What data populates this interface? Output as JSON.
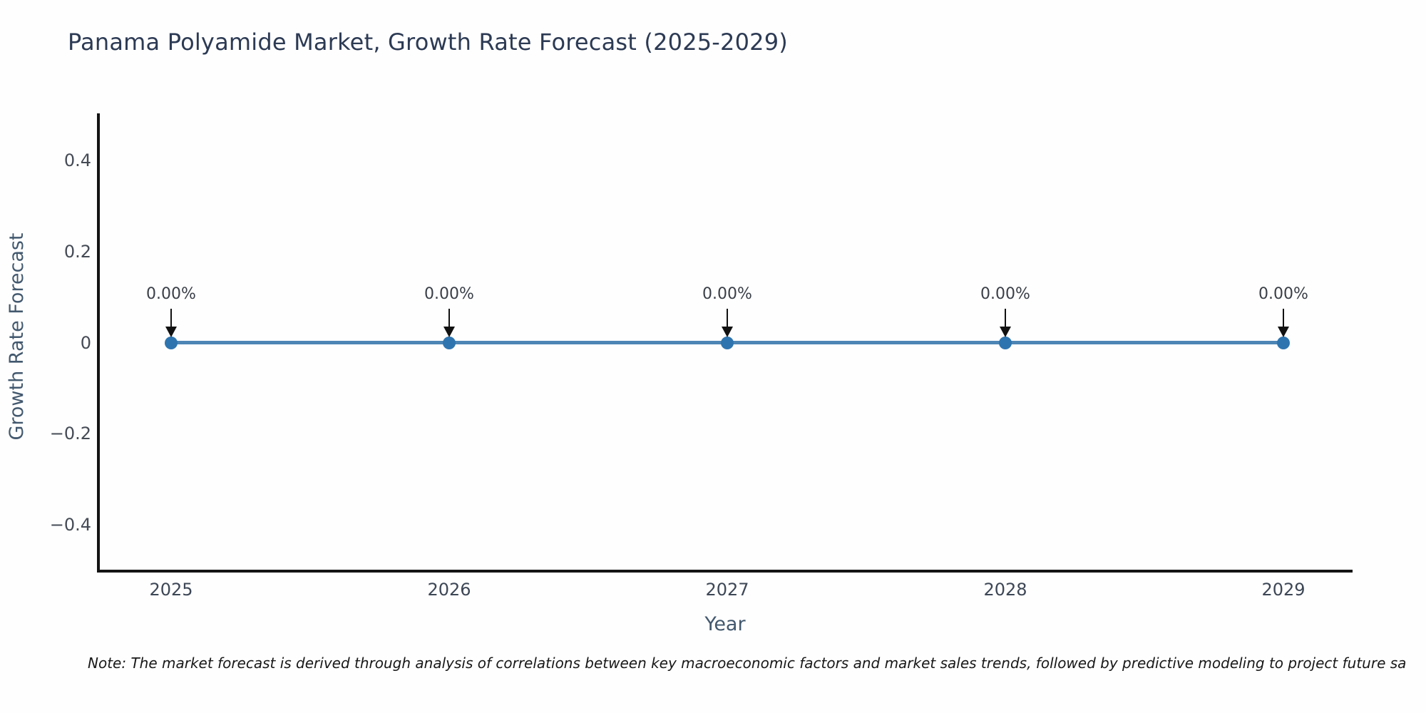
{
  "title": "Panama Polyamide Market, Growth Rate Forecast (2025-2029)",
  "note": "Note: The market forecast is derived through analysis of correlations between key macroeconomic factors and market sales trends, followed by predictive modeling to project future sa",
  "chart_data": {
    "type": "line",
    "title": "Panama Polyamide Market, Growth Rate Forecast (2025-2029)",
    "xlabel": "Year",
    "ylabel": "Growth Rate Forecast",
    "categories": [
      "2025",
      "2026",
      "2027",
      "2028",
      "2029"
    ],
    "series": [
      {
        "name": "Growth Rate Forecast",
        "values": [
          0,
          0,
          0,
          0,
          0
        ]
      }
    ],
    "point_labels": [
      "0.00%",
      "0.00%",
      "0.00%",
      "0.00%",
      "0.00%"
    ],
    "ylim": [
      -0.5,
      0.5
    ],
    "yticks": [
      {
        "label": "0.4",
        "value": 0.4
      },
      {
        "label": "0.2",
        "value": 0.2
      },
      {
        "label": "0",
        "value": 0
      },
      {
        "label": "−0.2",
        "value": -0.2
      },
      {
        "label": "−0.4",
        "value": -0.4
      }
    ],
    "grid": false,
    "legend": "none",
    "annotation_arrows": true,
    "colors": {
      "line": "#4d85b5",
      "marker": "#2e75b0",
      "arrow": "#111111",
      "spine": "#141414",
      "title_text": "#2c3a54",
      "axis_title_text": "#42586e"
    }
  }
}
